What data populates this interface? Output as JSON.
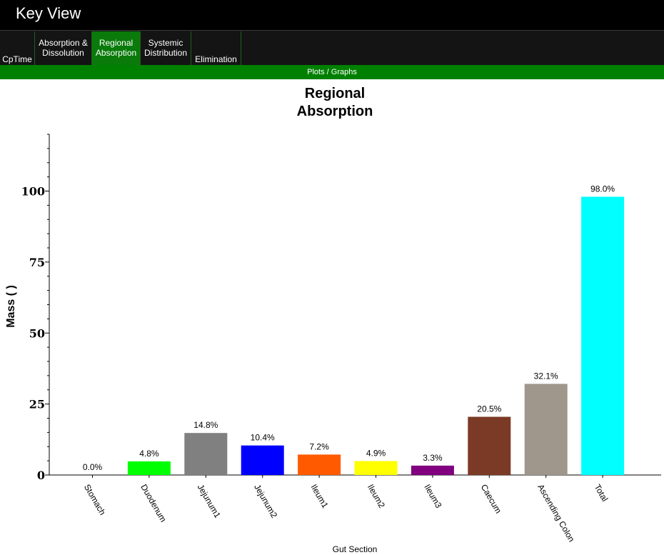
{
  "app": {
    "title": "Key View"
  },
  "tabs": [
    {
      "line1": "",
      "line2": "CpTime",
      "active": false
    },
    {
      "line1": "Absorption &",
      "line2": "Dissolution",
      "active": false
    },
    {
      "line1": "Regional",
      "line2": "Absorption",
      "active": true
    },
    {
      "line1": "Systemic",
      "line2": "Distribution",
      "active": false
    },
    {
      "line1": "",
      "line2": "Elimination",
      "active": false
    }
  ],
  "subheader": "Plots / Graphs",
  "colors": {
    "title_bar": "#000000",
    "tab_active": "#0a7a0a",
    "subheader": "#008000"
  },
  "chart_data": {
    "type": "bar",
    "title_lines": [
      "Regional",
      "Absorption"
    ],
    "xlabel": "Gut Section",
    "ylabel": "Mass ( )",
    "ylim": [
      0,
      120
    ],
    "yticks": [
      0,
      25,
      50,
      75,
      100
    ],
    "categories": [
      "Stomach",
      "Duodenum",
      "Jejunum1",
      "Jejunum2",
      "Ileum1",
      "Ileum2",
      "Ileum3",
      "Caecum",
      "Ascending Colon",
      "Total"
    ],
    "values": [
      0.0,
      4.8,
      14.8,
      10.4,
      7.2,
      4.9,
      3.3,
      20.5,
      32.1,
      98.0
    ],
    "labels": [
      "0.0%",
      "4.8%",
      "14.8%",
      "10.4%",
      "7.2%",
      "4.9%",
      "3.3%",
      "20.5%",
      "32.1%",
      "98.0%"
    ],
    "colors": [
      "#000000",
      "#00ff00",
      "#808080",
      "#0000ff",
      "#ff5a00",
      "#ffff00",
      "#800080",
      "#7b3a25",
      "#a0978c",
      "#00ffff"
    ],
    "grid": false,
    "legend": "none"
  }
}
